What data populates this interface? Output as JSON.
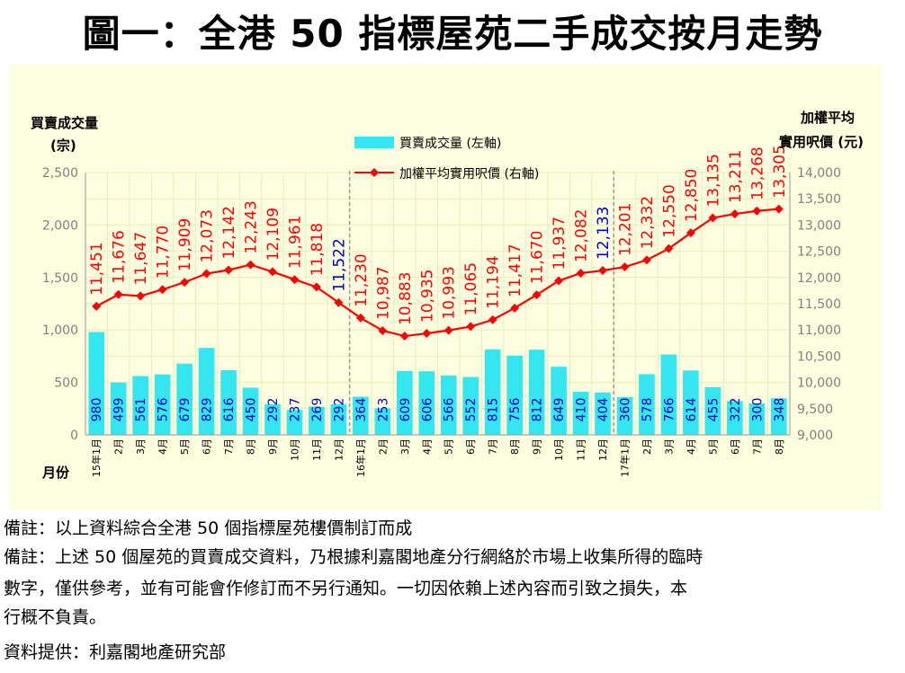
{
  "title": "圖一：全港 50 指標屋苑二手成交按月走勢",
  "chart_data": {
    "type": "bar+line",
    "left_axis_title_1": "買賣成交量",
    "left_axis_title_2": "(宗)",
    "right_axis_title_1": "加權平均",
    "right_axis_title_2": "實用呎價 (元)",
    "x_axis_title": "月份",
    "legend": {
      "bar": "買賣成交量 (左軸)",
      "line": "加權平均實用呎價 (右軸)"
    },
    "categories": [
      "15年1月",
      "2月",
      "3月",
      "4月",
      "5月",
      "6月",
      "7月",
      "8月",
      "9月",
      "10月",
      "11月",
      "12月",
      "16年1月",
      "2月",
      "3月",
      "4月",
      "5月",
      "6月",
      "7月",
      "8月",
      "9月",
      "10月",
      "11月",
      "12月",
      "17年1月",
      "2月",
      "3月",
      "4月",
      "5月",
      "6月",
      "7月",
      "8月"
    ],
    "series": [
      {
        "name": "買賣成交量 (左軸)",
        "axis": "left",
        "type": "bar",
        "color": "#33e6f0",
        "values": [
          980,
          499,
          561,
          576,
          679,
          829,
          616,
          450,
          292,
          237,
          269,
          292,
          364,
          253,
          609,
          606,
          566,
          552,
          815,
          756,
          812,
          649,
          410,
          404,
          360,
          578,
          766,
          614,
          455,
          322,
          300,
          348
        ]
      },
      {
        "name": "加權平均實用呎價 (右軸)",
        "axis": "right",
        "type": "line",
        "color": "#ff0000",
        "values": [
          11451,
          11676,
          11647,
          11770,
          11909,
          12073,
          12142,
          12243,
          12109,
          11961,
          11818,
          11522,
          11230,
          10987,
          10883,
          10935,
          10993,
          11065,
          11194,
          11417,
          11670,
          11937,
          12082,
          12133,
          12201,
          12332,
          12550,
          12850,
          13135,
          13211,
          13268,
          13305
        ]
      }
    ],
    "bar_labels": [
      "980",
      "499",
      "561",
      "576",
      "679",
      "829",
      "616",
      "450",
      "292",
      "237",
      "269",
      "292",
      "364",
      "253",
      "609",
      "606",
      "566",
      "552",
      "815",
      "756",
      "812",
      "649",
      "410",
      "404",
      "360",
      "578",
      "766",
      "614",
      "455",
      "322",
      "300",
      "348"
    ],
    "line_labels": [
      "11,451",
      "11,676",
      "11,647",
      "11,770",
      "11,909",
      "12,073",
      "12,142",
      "12,243",
      "12,109",
      "11,961",
      "11,818",
      "11,522",
      "11,230",
      "10,987",
      "10,883",
      "10,935",
      "10,993",
      "11,065",
      "11,194",
      "11,417",
      "11,670",
      "11,937",
      "12,082",
      "12,133",
      "12,201",
      "12,332",
      "12,550",
      "12,850",
      "13,135",
      "13,211",
      "13,268",
      "13,305"
    ],
    "highlight_line_labels": [
      11,
      23
    ],
    "left_ylim": [
      0,
      2500
    ],
    "left_ticks": [
      "2,500",
      "2,000",
      "1,500",
      "1,000",
      "500",
      "0"
    ],
    "right_ylim": [
      9000,
      14000
    ],
    "right_ticks": [
      "14,000",
      "13,500",
      "13,000",
      "12,500",
      "12,000",
      "11,500",
      "11,000",
      "10,500",
      "10,000",
      "9,500",
      "9,000"
    ],
    "year_separators_after": [
      11,
      23
    ],
    "colors": {
      "plot_bg": "#fdfde0",
      "grid": "#e4f0b4",
      "bar": "#33e6f0",
      "line": "#ff0000",
      "label_red": "#ff0000",
      "label_blue": "#0000cc",
      "bar_label": "#0000cc",
      "axis_text": "#808080"
    }
  },
  "notes": {
    "note1": "備註：以上資料綜合全港 50 個指標屋苑樓價制訂而成",
    "note2_line1": "備註：上述 50 個屋苑的買賣成交資料，乃根據利嘉閣地產分行網絡於市場上收集所得的臨時",
    "note2_line2": "數字，僅供參考，並有可能會作修訂而不另行通知。一切因依賴上述內容而引致之損失，本",
    "note2_line3": "行概不負責。",
    "source": "資料提供：利嘉閣地產研究部"
  }
}
